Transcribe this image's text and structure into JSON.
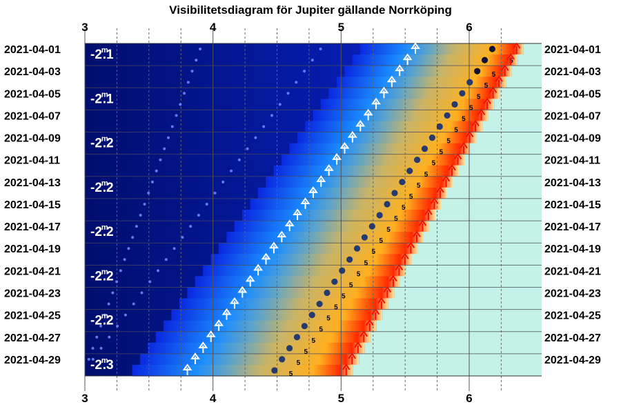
{
  "chart_data": {
    "type": "visibility-diagram",
    "title": "Visibilitetsdiagram för Jupiter gällande Norrköping",
    "x_axis": {
      "ticks": [
        "3",
        "4",
        "5",
        "6"
      ],
      "range": [
        3,
        6.5
      ],
      "position": "top-and-bottom"
    },
    "y_axis": {
      "labels": [
        "2021-04-01",
        "2021-04-03",
        "2021-04-05",
        "2021-04-07",
        "2021-04-09",
        "2021-04-11",
        "2021-04-13",
        "2021-04-15",
        "2021-04-17",
        "2021-04-19",
        "2021-04-21",
        "2021-04-23",
        "2021-04-25",
        "2021-04-27",
        "2021-04-29"
      ],
      "first_date": "2021-04-01",
      "last_date": "2021-04-30",
      "position": "left-and-right"
    },
    "magnitude_labels": [
      {
        "date": "2021-04-01",
        "base": "-2.1",
        "unit": "m"
      },
      {
        "date": "2021-04-05",
        "base": "-2.1",
        "unit": "m"
      },
      {
        "date": "2021-04-09",
        "base": "-2.2",
        "unit": "m"
      },
      {
        "date": "2021-04-13",
        "base": "-2.2",
        "unit": "m"
      },
      {
        "date": "2021-04-17",
        "base": "-2.2",
        "unit": "m"
      },
      {
        "date": "2021-04-21",
        "base": "-2.2",
        "unit": "m"
      },
      {
        "date": "2021-04-25",
        "base": "-2.2",
        "unit": "m"
      },
      {
        "date": "2021-04-29",
        "base": "-2.3",
        "unit": "m"
      }
    ],
    "series": [
      {
        "role": "rise",
        "first": [
          "2021-04-01",
          5.58
        ],
        "last": [
          "2021-04-30",
          3.8
        ]
      },
      {
        "role": "position",
        "first": [
          "2021-04-01",
          6.18
        ],
        "last": [
          "2021-04-30",
          4.48
        ]
      },
      {
        "role": "sunrise",
        "first": [
          "2021-04-01",
          6.37
        ],
        "last": [
          "2021-04-30",
          5.04
        ]
      },
      {
        "role": "faint-dots-1",
        "first": [
          "2021-04-01",
          3.9
        ],
        "last": [
          "2021-04-30",
          3.0
        ]
      },
      {
        "role": "faint-dots-2",
        "first": [
          "2021-04-01",
          4.84
        ],
        "last": [
          "2021-04-30",
          3.0
        ]
      }
    ],
    "step_label": "5",
    "colors": {
      "deep_night": "#000e6e",
      "night": "#0a28e0",
      "bright_sky": "#1a8cff",
      "twilight": "#c8b468",
      "dawn": "#ffb020",
      "sunrise_red": "#ff2a00",
      "day": "#c4f2e6",
      "rise_arrow": "#ffffff",
      "planet_dot": "#263a70"
    }
  }
}
